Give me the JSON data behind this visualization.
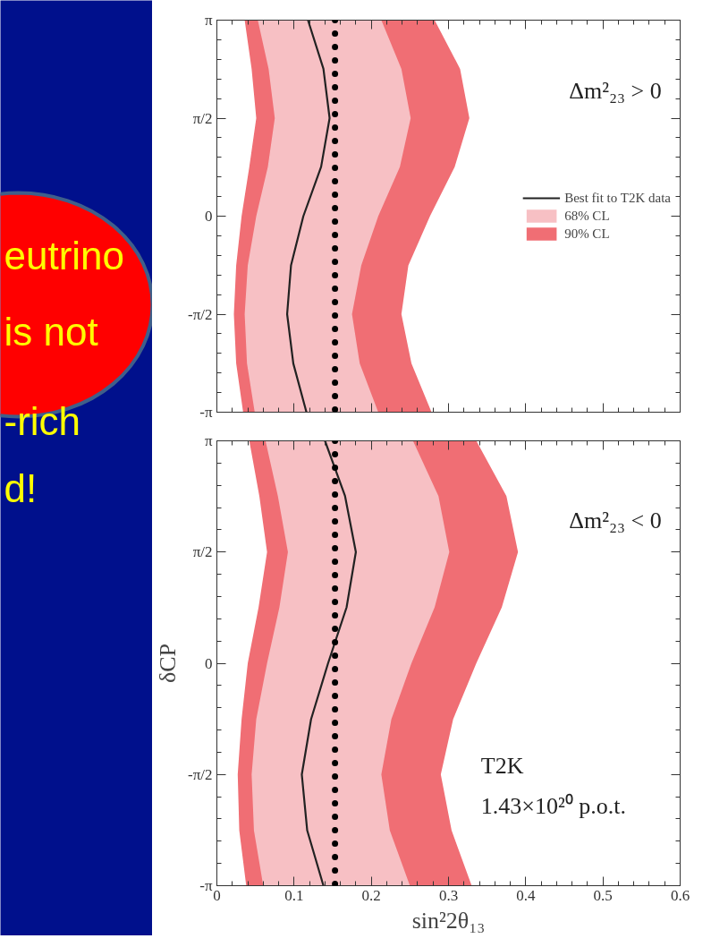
{
  "chart_data": [
    {
      "type": "other",
      "annotations": [
        "eutrino",
        "is not",
        "-rich",
        "d!"
      ]
    },
    {
      "type": "area",
      "xlim": [
        0,
        0.6
      ],
      "ylim": [
        -3.14,
        3.14
      ],
      "xticks": [
        0,
        0.1,
        0.2,
        0.3,
        0.4,
        0.5,
        0.6
      ],
      "yticks": [
        {
          "value": -3.14,
          "label": "-π"
        },
        {
          "value": -1.57,
          "label": "-π/2"
        },
        0,
        {
          "value": 1.57,
          "label": "π/2"
        },
        {
          "value": 3.14,
          "label": "π"
        }
      ],
      "tick_labels": "y",
      "grid": false,
      "legend": "right",
      "series": [
        {
          "name": "90% CL",
          "type": "area",
          "color": "#f06e74",
          "x": [
            0.036,
            0.045,
            0.051,
            0.042,
            0.032,
            0.025,
            0.022,
            0.025,
            0.034,
            0.278,
            0.252,
            0.239,
            0.248,
            0.276,
            0.308,
            0.327,
            0.315,
            0.282
          ],
          "values": [
            3.14,
            2.36,
            1.57,
            0.79,
            0,
            -0.79,
            -1.57,
            -2.36,
            -3.14,
            -3.14,
            -2.36,
            -1.57,
            -0.79,
            0,
            0.79,
            1.57,
            2.36,
            3.14
          ]
        },
        {
          "name": "68% CL",
          "type": "area",
          "color": "#f7c0c4",
          "x": [
            0.053,
            0.067,
            0.075,
            0.066,
            0.051,
            0.04,
            0.036,
            0.039,
            0.049,
            0.209,
            0.185,
            0.175,
            0.187,
            0.209,
            0.237,
            0.251,
            0.239,
            0.213
          ],
          "values": [
            3.14,
            2.36,
            1.57,
            0.79,
            0,
            -0.79,
            -1.57,
            -2.36,
            -3.14,
            -3.14,
            -2.36,
            -1.57,
            -0.79,
            0,
            0.79,
            1.57,
            2.36,
            3.14
          ]
        },
        {
          "name": "Best fit to T2K data",
          "type": "line",
          "color": "#222222",
          "x": [
            0.118,
            0.138,
            0.146,
            0.135,
            0.112,
            0.096,
            0.091,
            0.099,
            0.116
          ],
          "values": [
            3.14,
            2.36,
            1.57,
            0.79,
            0,
            -0.79,
            -1.57,
            -2.36,
            -3.14
          ]
        }
      ],
      "ref_lines": [
        {
          "axis": "x",
          "value": 0.153,
          "color": "#000000",
          "line_style": "dotted"
        }
      ],
      "annotations": [
        "Δm²₂₃ > 0"
      ]
    },
    {
      "type": "area",
      "xlim": [
        0,
        0.6
      ],
      "ylim": [
        -3.14,
        3.14
      ],
      "xlabel": "sin²2θ₁₃",
      "ylabel": "δCP",
      "xticks": [
        0,
        0.1,
        0.2,
        0.3,
        0.4,
        0.5,
        0.6
      ],
      "yticks": [
        {
          "value": -3.14,
          "label": "-π"
        },
        {
          "value": -1.57,
          "label": "-π/2"
        },
        0,
        {
          "value": 1.57,
          "label": "π/2"
        },
        {
          "value": 3.14,
          "label": "π"
        }
      ],
      "grid": false,
      "series": [
        {
          "type": "area",
          "color": "#f06e74",
          "x": [
            0.042,
            0.055,
            0.065,
            0.054,
            0.04,
            0.032,
            0.027,
            0.029,
            0.038,
            0.33,
            0.304,
            0.29,
            0.306,
            0.336,
            0.369,
            0.39,
            0.375,
            0.336
          ],
          "values": [
            3.14,
            2.36,
            1.57,
            0.79,
            0,
            -0.79,
            -1.57,
            -2.36,
            -3.14,
            -3.14,
            -2.36,
            -1.57,
            -0.79,
            0,
            0.79,
            1.57,
            2.36,
            3.14
          ]
        },
        {
          "type": "area",
          "color": "#f7c0c4",
          "x": [
            0.063,
            0.079,
            0.092,
            0.081,
            0.065,
            0.051,
            0.045,
            0.048,
            0.06,
            0.25,
            0.224,
            0.213,
            0.226,
            0.252,
            0.282,
            0.301,
            0.287,
            0.254
          ],
          "values": [
            3.14,
            2.36,
            1.57,
            0.79,
            0,
            -0.79,
            -1.57,
            -2.36,
            -3.14,
            -3.14,
            -2.36,
            -1.57,
            -0.79,
            0,
            0.79,
            1.57,
            2.36,
            3.14
          ]
        },
        {
          "type": "line",
          "color": "#222222",
          "x": [
            0.14,
            0.166,
            0.18,
            0.168,
            0.144,
            0.122,
            0.11,
            0.117,
            0.138
          ],
          "values": [
            3.14,
            2.36,
            1.57,
            0.79,
            0,
            -0.79,
            -1.57,
            -2.36,
            -3.14
          ]
        }
      ],
      "ref_lines": [
        {
          "axis": "x",
          "value": 0.153,
          "color": "#000000",
          "line_style": "dotted"
        }
      ],
      "annotations": [
        "Δm²₂₃ < 0",
        "T2K",
        "1.43×10²⁰ p.o.t."
      ]
    }
  ]
}
